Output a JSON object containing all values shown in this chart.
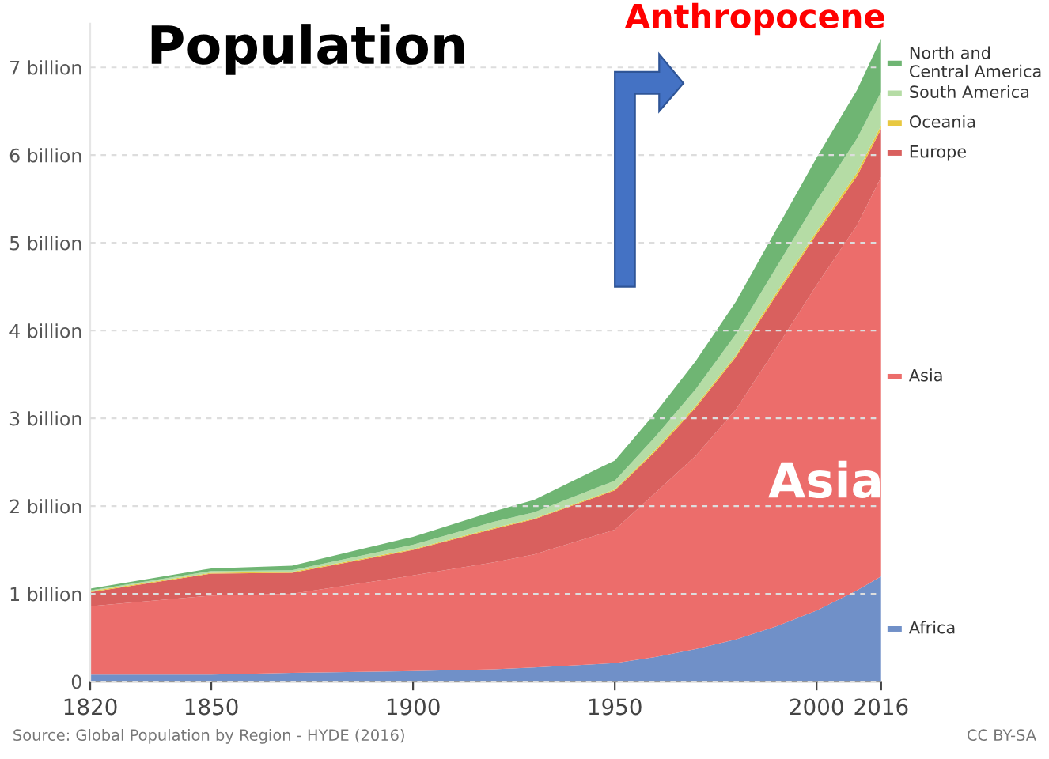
{
  "chart_data": {
    "type": "area",
    "stacked": true,
    "title": "Population",
    "x": [
      1820,
      1850,
      1870,
      1900,
      1920,
      1930,
      1950,
      1960,
      1970,
      1980,
      1990,
      2000,
      2010,
      2016
    ],
    "series": [
      {
        "name": "Africa",
        "color": "#7090c8",
        "values": [
          0.08,
          0.08,
          0.1,
          0.12,
          0.14,
          0.16,
          0.21,
          0.28,
          0.37,
          0.48,
          0.63,
          0.81,
          1.04,
          1.2
        ]
      },
      {
        "name": "Asia",
        "color": "#ec6d6b",
        "values": [
          0.78,
          0.9,
          0.9,
          1.09,
          1.22,
          1.29,
          1.52,
          1.87,
          2.2,
          2.62,
          3.17,
          3.71,
          4.16,
          4.55
        ]
      },
      {
        "name": "Europe",
        "color": "#d9605e",
        "values": [
          0.16,
          0.25,
          0.24,
          0.29,
          0.38,
          0.4,
          0.45,
          0.47,
          0.55,
          0.6,
          0.6,
          0.58,
          0.56,
          0.55
        ]
      },
      {
        "name": "Oceania",
        "color": "#e8c840",
        "values": [
          0.01,
          0.01,
          0.01,
          0.01,
          0.01,
          0.01,
          0.01,
          0.02,
          0.02,
          0.02,
          0.03,
          0.03,
          0.04,
          0.04
        ]
      },
      {
        "name": "South America",
        "color": "#b5dca5",
        "values": [
          0.01,
          0.02,
          0.02,
          0.05,
          0.07,
          0.07,
          0.1,
          0.15,
          0.19,
          0.24,
          0.29,
          0.35,
          0.39,
          0.38
        ]
      },
      {
        "name": "North and Central America",
        "color": "#6fb573",
        "values": [
          0.02,
          0.03,
          0.05,
          0.09,
          0.12,
          0.14,
          0.23,
          0.27,
          0.32,
          0.37,
          0.43,
          0.49,
          0.55,
          0.61
        ]
      }
    ],
    "xlim": [
      1820,
      2016
    ],
    "xticks": [
      1820,
      1850,
      1900,
      1950,
      2000,
      2016
    ],
    "ylim": [
      0,
      7.5
    ],
    "yticks": [
      0,
      {
        "value": 1,
        "label": "1 billion"
      },
      {
        "value": 2,
        "label": "2 billion"
      },
      {
        "value": 3,
        "label": "3 billion"
      },
      {
        "value": 4,
        "label": "4 billion"
      },
      {
        "value": 5,
        "label": "5 billion"
      },
      {
        "value": 6,
        "label": "6 billion"
      },
      {
        "value": 7,
        "label": "7 billion"
      }
    ],
    "grid": "y",
    "legend": "right",
    "annotations": [
      "Anthropocene",
      "Asia",
      "Source: Global Population by Region - HYDE (2016)",
      "CC BY-SA"
    ]
  }
}
